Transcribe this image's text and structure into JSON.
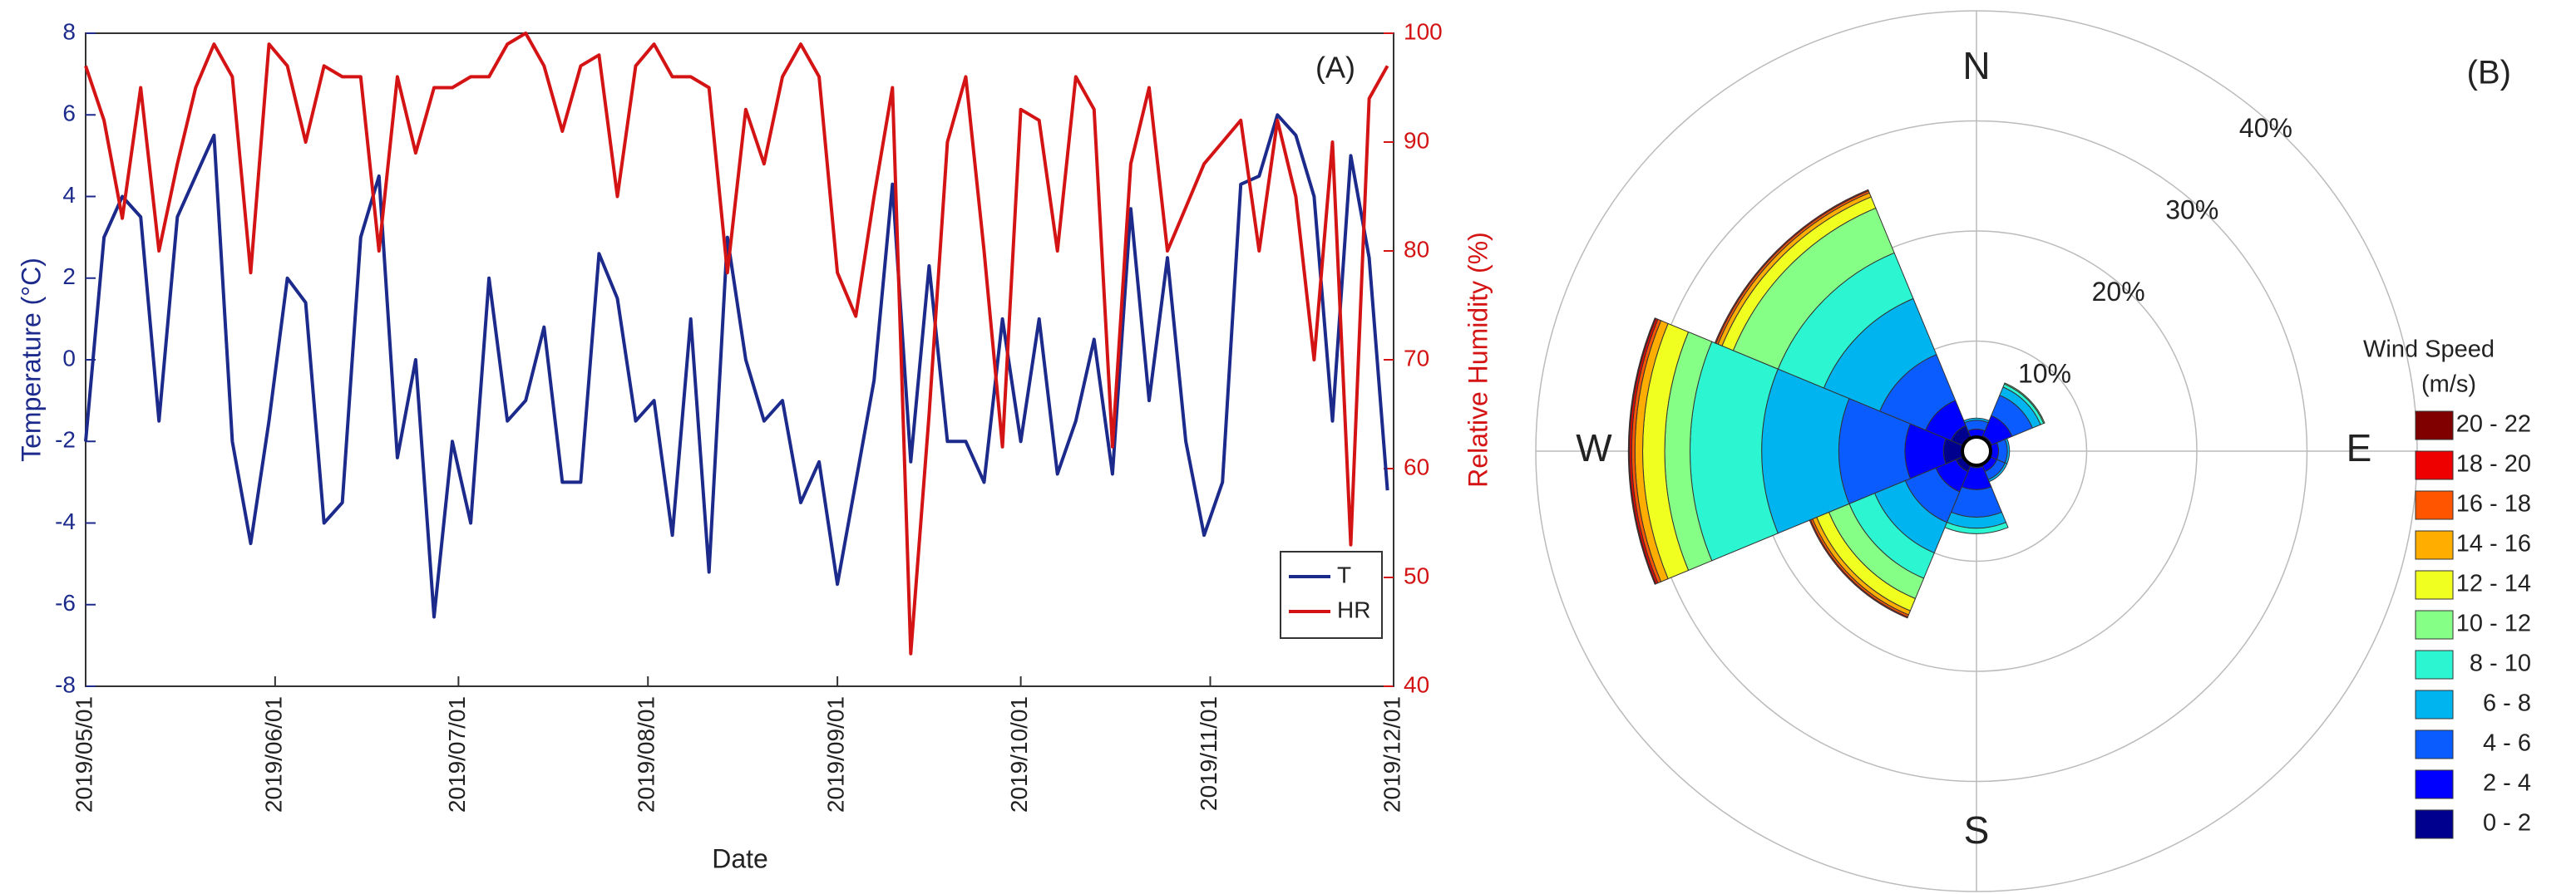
{
  "chart_data": [
    {
      "type": "line",
      "title": "(A)",
      "x_label": "Date",
      "y_label": "Temperature (°C)",
      "y2_label": "Relative Humidity (%)",
      "x": [
        "2019/05/01",
        "2019/05/04",
        "2019/05/07",
        "2019/05/10",
        "2019/05/13",
        "2019/05/16",
        "2019/05/19",
        "2019/05/22",
        "2019/05/25",
        "2019/05/28",
        "2019/05/31",
        "2019/06/03",
        "2019/06/06",
        "2019/06/09",
        "2019/06/12",
        "2019/06/15",
        "2019/06/18",
        "2019/06/21",
        "2019/06/24",
        "2019/06/27",
        "2019/06/30",
        "2019/07/03",
        "2019/07/06",
        "2019/07/09",
        "2019/07/12",
        "2019/07/15",
        "2019/07/18",
        "2019/07/21",
        "2019/07/24",
        "2019/07/27",
        "2019/07/30",
        "2019/08/02",
        "2019/08/05",
        "2019/08/08",
        "2019/08/11",
        "2019/08/14",
        "2019/08/17",
        "2019/08/20",
        "2019/08/23",
        "2019/08/26",
        "2019/08/29",
        "2019/09/01",
        "2019/09/04",
        "2019/09/07",
        "2019/09/10",
        "2019/09/13",
        "2019/09/16",
        "2019/09/19",
        "2019/09/22",
        "2019/09/25",
        "2019/09/28",
        "2019/10/01",
        "2019/10/04",
        "2019/10/07",
        "2019/10/10",
        "2019/10/13",
        "2019/10/16",
        "2019/10/19",
        "2019/10/22",
        "2019/10/25",
        "2019/10/28",
        "2019/10/31",
        "2019/11/03",
        "2019/11/06",
        "2019/11/09",
        "2019/11/12",
        "2019/11/15",
        "2019/11/18",
        "2019/11/21",
        "2019/11/24",
        "2019/11/27",
        "2019/11/30"
      ],
      "series": [
        {
          "name": "T",
          "color": "#1c2a8c",
          "values": [
            -2,
            3,
            4,
            3.5,
            -1.5,
            3.5,
            4.5,
            5.5,
            -2,
            -4.5,
            -1.5,
            2,
            1.4,
            -4,
            -3.5,
            3,
            4.5,
            -2.4,
            0,
            -6.3,
            -2,
            -4,
            2,
            -1.5,
            -1,
            0.8,
            -3,
            -3,
            2.6,
            1.5,
            -1.5,
            -1,
            -4.3,
            1,
            -5.2,
            3,
            0,
            -1.5,
            -1,
            -3.5,
            -2.5,
            -5.5,
            -3,
            -0.5,
            4.3,
            -2.5,
            2.3,
            -2,
            -2,
            -3,
            1,
            -2,
            1,
            -2.8,
            -1.5,
            0.5,
            -2.8,
            3.7,
            -1,
            2.5,
            -2,
            -4.3,
            -3,
            4.3,
            4.5,
            6,
            5.5,
            4,
            -1.5,
            5,
            2.5,
            -3.2
          ]
        },
        {
          "name": "HR",
          "color": "#d41414",
          "axis": "y2",
          "values": [
            97,
            92,
            83,
            95,
            80,
            88,
            95,
            99,
            96,
            78,
            99,
            97,
            90,
            97,
            96,
            96,
            80,
            96,
            89,
            95,
            95,
            96,
            96,
            99,
            100,
            97,
            91,
            97,
            98,
            85,
            97,
            99,
            96,
            96,
            95,
            78,
            93,
            88,
            96,
            99,
            96,
            78,
            74,
            85,
            95,
            43,
            65,
            90,
            96,
            80,
            62,
            93,
            92,
            80,
            96,
            93,
            62,
            88,
            95,
            80,
            84,
            88,
            90,
            92,
            80,
            92,
            85,
            70,
            90,
            53,
            94,
            97
          ]
        }
      ],
      "xlim": [
        "2019/05/01",
        "2019/12/01"
      ],
      "xticks": [
        "2019/05/01",
        "2019/06/01",
        "2019/07/01",
        "2019/08/01",
        "2019/09/01",
        "2019/10/01",
        "2019/11/01",
        "2019/12/01"
      ],
      "ylim": [
        -8,
        8
      ],
      "yticks": [
        -8,
        -6,
        -4,
        -2,
        0,
        2,
        4,
        6,
        8
      ],
      "y2lim": [
        40,
        100
      ],
      "y2ticks": [
        40,
        50,
        60,
        70,
        80,
        90,
        100
      ],
      "legend": "lower right"
    },
    {
      "type": "windrose",
      "title": "(B)",
      "legend_title": [
        "Wind Speed",
        "(m/s)"
      ],
      "angles": [
        0,
        45,
        90,
        135,
        180,
        225,
        270,
        315
      ],
      "direction_labels": [
        "N",
        "E",
        "S",
        "W"
      ],
      "rlim": [
        0,
        40
      ],
      "rticks": [
        {
          "value": 10,
          "label": "10%"
        },
        {
          "value": 20,
          "label": "20%"
        },
        {
          "value": 30,
          "label": "30%"
        },
        {
          "value": 40,
          "label": "40%"
        }
      ],
      "series": [
        {
          "name": "0 - 2",
          "color": "#00008f",
          "values": [
            1,
            1.5,
            1,
            1,
            1.5,
            2,
            3,
            2.5
          ]
        },
        {
          "name": "2 - 4",
          "color": "#0000ff",
          "values": [
            1,
            2,
            1,
            1,
            2,
            2,
            3.5,
            2.5
          ]
        },
        {
          "name": "4 - 6",
          "color": "#0a5cff",
          "values": [
            0.8,
            2,
            0.8,
            0.8,
            2.5,
            3,
            6,
            4.5
          ]
        },
        {
          "name": "6 - 8",
          "color": "#00b4f0",
          "values": [
            0.2,
            0.8,
            0.2,
            0.2,
            1,
            3,
            7,
            5.5
          ]
        },
        {
          "name": "8 - 10",
          "color": "#2cf5d2",
          "values": [
            0,
            0.3,
            0,
            0,
            0.5,
            2.5,
            6.5,
            4.5
          ]
        },
        {
          "name": "10 - 12",
          "color": "#86ff86",
          "values": [
            0,
            0.1,
            0,
            0,
            0,
            2,
            2.3,
            4.4
          ]
        },
        {
          "name": "12 - 14",
          "color": "#f0ff20",
          "values": [
            0,
            0,
            0,
            0,
            0,
            1.2,
            2,
            1.1
          ]
        },
        {
          "name": "14 - 16",
          "color": "#ffae00",
          "values": [
            0,
            0,
            0,
            0,
            0,
            0.4,
            0.7,
            0.4
          ]
        },
        {
          "name": "16 - 18",
          "color": "#ff5500",
          "values": [
            0,
            0,
            0,
            0,
            0,
            0.2,
            0.3,
            0.2
          ]
        },
        {
          "name": "18 - 20",
          "color": "#ee0000",
          "values": [
            0,
            0,
            0,
            0,
            0,
            0.1,
            0.2,
            0.1
          ]
        },
        {
          "name": "20 - 22",
          "color": "#800000",
          "values": [
            0,
            0,
            0,
            0,
            0,
            0,
            0.1,
            0
          ]
        }
      ]
    }
  ]
}
